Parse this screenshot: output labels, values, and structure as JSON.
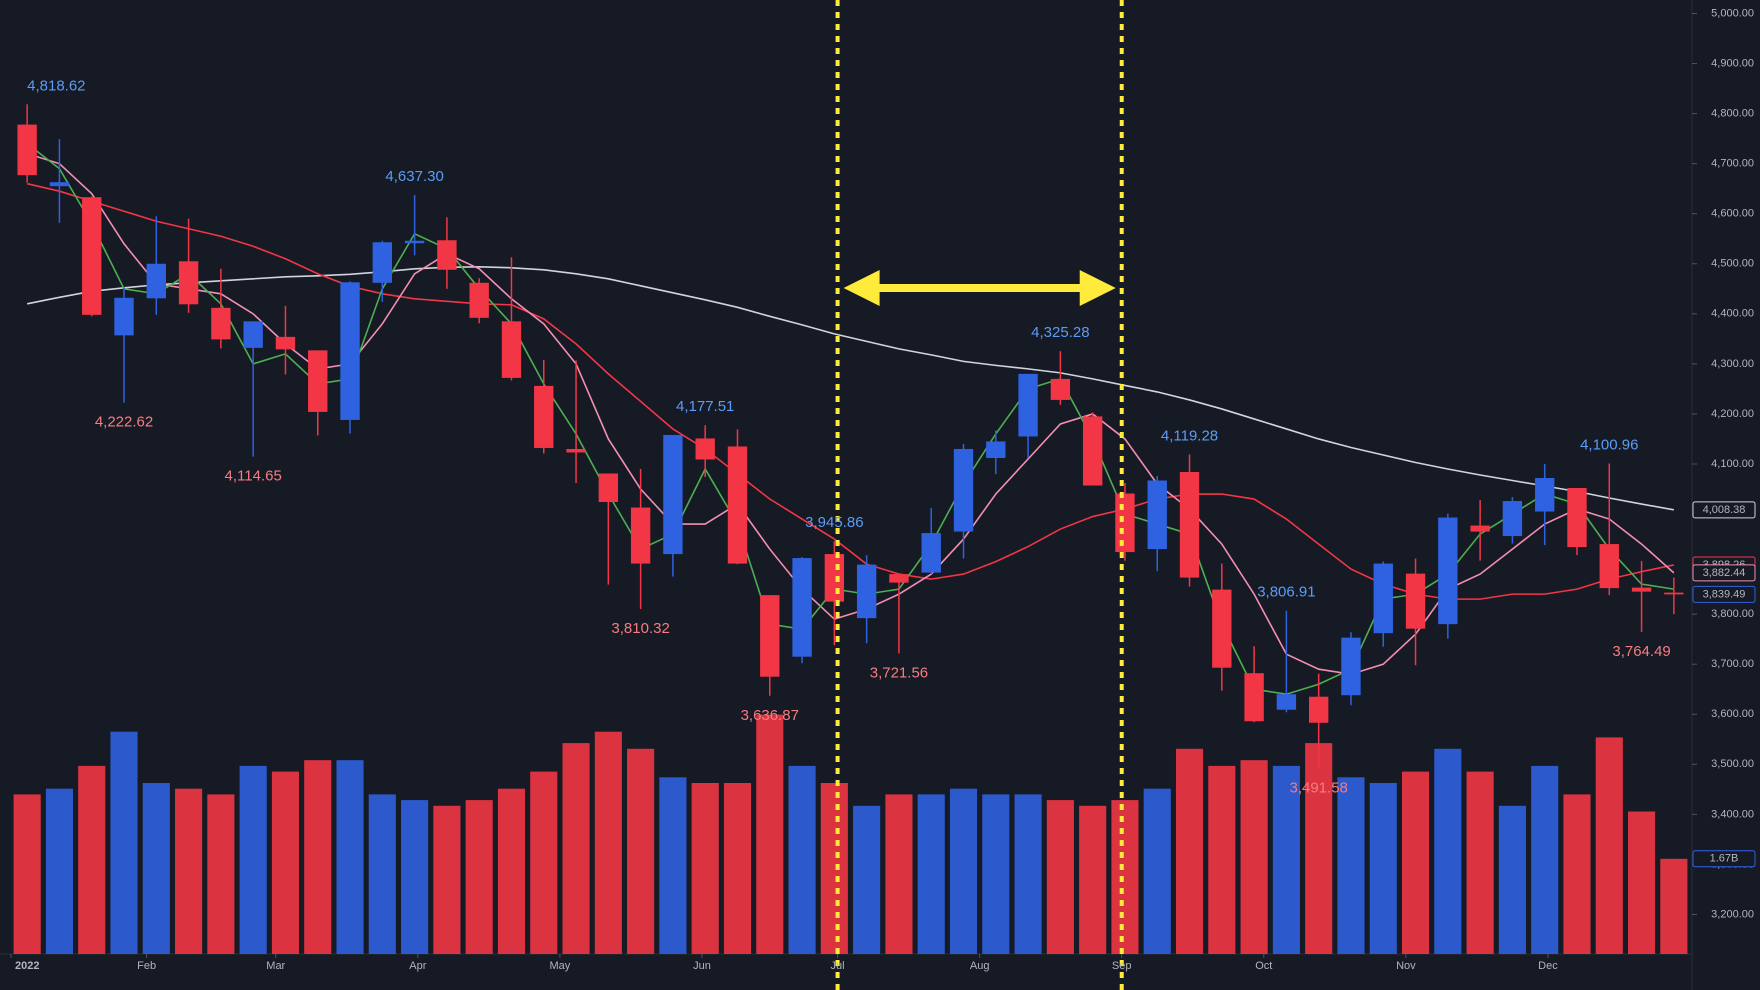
{
  "chart_data": {
    "type": "candlestick",
    "xlim": [
      0,
      52
    ],
    "xticks": [
      {
        "value": 0,
        "label": "2022"
      },
      {
        "value": 4.2,
        "label": "Feb"
      },
      {
        "value": 8.2,
        "label": "Mar"
      },
      {
        "value": 12.6,
        "label": "Apr"
      },
      {
        "value": 17,
        "label": "May"
      },
      {
        "value": 21.4,
        "label": "Jun"
      },
      {
        "value": 25.6,
        "label": "Jul"
      },
      {
        "value": 30,
        "label": "Aug"
      },
      {
        "value": 34.4,
        "label": "Sep"
      },
      {
        "value": 38.8,
        "label": "Oct"
      },
      {
        "value": 43.2,
        "label": "Nov"
      },
      {
        "value": 47.6,
        "label": "Dec"
      }
    ],
    "ylim": [
      3121,
      5027
    ],
    "yticks": [
      {
        "value": 3200,
        "label": "3,200.00"
      },
      {
        "value": 3300,
        "label": "3,300.00"
      },
      {
        "value": 3400,
        "label": "3,400.00"
      },
      {
        "value": 3500,
        "label": "3,500.00"
      },
      {
        "value": 3600,
        "label": "3,600.00"
      },
      {
        "value": 3700,
        "label": "3,700.00"
      },
      {
        "value": 3800,
        "label": "3,800.00"
      },
      {
        "value": 3900,
        "label": "3,900.00"
      },
      {
        "value": 4000,
        "label": "4,000.00"
      },
      {
        "value": 4100,
        "label": "4,100.00"
      },
      {
        "value": 4200,
        "label": "4,200.00"
      },
      {
        "value": 4300,
        "label": "4,300.00"
      },
      {
        "value": 4400,
        "label": "4,400.00"
      },
      {
        "value": 4500,
        "label": "4,500.00"
      },
      {
        "value": 4600,
        "label": "4,600.00"
      },
      {
        "value": 4700,
        "label": "4,700.00"
      },
      {
        "value": 4800,
        "label": "4,800.00"
      },
      {
        "value": 4900,
        "label": "4,900.00"
      },
      {
        "value": 5000,
        "label": "5,000.00"
      }
    ],
    "up_color": "#2f62e0",
    "down_color": "#f23645",
    "open": [
      4778,
      4655,
      4633,
      4357,
      4431,
      4505,
      4412,
      4332,
      4354,
      4327,
      4188,
      4462,
      4541,
      4547,
      4462,
      4385,
      4256,
      4130,
      4081,
      4013,
      3920,
      4151,
      4135,
      3838,
      3715,
      3920,
      3792,
      3880,
      3883,
      3965,
      4112,
      4155,
      4270,
      4195,
      4041,
      3930,
      4084,
      3849,
      3682,
      3609,
      3635,
      3638,
      3762,
      3881,
      3780,
      3977,
      3956,
      4005,
      4052,
      3940,
      3853,
      3843
    ],
    "high": [
      4818.62,
      4749,
      4634,
      4453,
      4595,
      4590,
      4490,
      4385,
      4416,
      4327,
      4465,
      4546,
      4637.3,
      4593,
      4471,
      4513,
      4308,
      4307,
      4081,
      4090,
      4158,
      4177.51,
      4169,
      3838,
      3914,
      3945.86,
      3918,
      3880,
      4012,
      4140,
      4167,
      4280,
      4325.28,
      4203,
      4062,
      4076,
      4119.28,
      3901,
      3736,
      3806.91,
      3681,
      3764,
      3905,
      3911,
      4001,
      4028,
      4034,
      4100,
      4052,
      4100.96,
      3906,
      3873
    ],
    "low": [
      4662,
      4582,
      4395,
      4222.62,
      4398,
      4402,
      4331,
      4114.65,
      4279,
      4157,
      4161,
      4424,
      4517,
      4450,
      4381,
      4267,
      4121,
      4062,
      3859,
      3810.32,
      3875,
      4074,
      3900,
      3636.87,
      3702,
      3738,
      3742,
      3721.56,
      3880,
      3911,
      4080,
      4112,
      4218,
      4057,
      3907,
      3886,
      3855,
      3647,
      3584,
      3604,
      3491.58,
      3618,
      3735,
      3698,
      3751,
      3907,
      3941,
      3938,
      3918,
      3838,
      3764.49,
      3800
    ],
    "close": [
      4677,
      4663,
      4398,
      4432,
      4500,
      4419,
      4349,
      4385,
      4329,
      4204,
      4463,
      4543,
      4546,
      4488,
      4392,
      4272,
      4132,
      4123,
      4024,
      3901,
      4158,
      4109,
      3901,
      3675,
      3912,
      3825,
      3899,
      3863,
      3962,
      4130,
      4145,
      4280,
      4228,
      4057,
      3924,
      4067,
      3873,
      3693,
      3586,
      3640,
      3583,
      3753,
      3901,
      3771,
      3993,
      3965,
      4026,
      4072,
      3934,
      3852,
      3845,
      3839.49
    ],
    "volume": [
      2.8,
      2.9,
      3.3,
      3.9,
      3.0,
      2.9,
      2.8,
      3.3,
      3.2,
      3.4,
      3.4,
      2.8,
      2.7,
      2.6,
      2.7,
      2.9,
      3.2,
      3.7,
      3.9,
      3.6,
      3.1,
      3.0,
      3.0,
      4.2,
      3.3,
      3.0,
      2.6,
      2.8,
      2.8,
      2.9,
      2.8,
      2.8,
      2.7,
      2.6,
      2.7,
      2.9,
      3.6,
      3.3,
      3.4,
      3.3,
      3.7,
      3.1,
      3.0,
      3.2,
      3.6,
      3.2,
      2.6,
      3.3,
      2.8,
      3.8,
      2.5,
      1.67
    ],
    "vlim": [
      0,
      6
    ],
    "volume_marker": {
      "value": 1.67,
      "label": "1.67B"
    },
    "lines": [
      {
        "color": "#d1d4dc",
        "values": [
          4420,
          4433,
          4445,
          4452,
          4458,
          4462,
          4466,
          4470,
          4474,
          4476,
          4479,
          4484,
          4490,
          4493,
          4494,
          4492,
          4488,
          4480,
          4470,
          4456,
          4442,
          4428,
          4413,
          4395,
          4378,
          4360,
          4345,
          4330,
          4318,
          4305,
          4297,
          4290,
          4282,
          4270,
          4257,
          4244,
          4228,
          4210,
          4190,
          4170,
          4150,
          4133,
          4118,
          4103,
          4090,
          4078,
          4067,
          4056,
          4045,
          4032,
          4020,
          4008.38
        ]
      },
      {
        "color": "#f23645",
        "values": [
          4660,
          4645,
          4625,
          4605,
          4585,
          4570,
          4555,
          4535,
          4510,
          4480,
          4455,
          4440,
          4430,
          4425,
          4420,
          4418,
          4390,
          4340,
          4280,
          4225,
          4170,
          4130,
          4080,
          4030,
          3990,
          3950,
          3900,
          3880,
          3870,
          3880,
          3905,
          3935,
          3970,
          3995,
          4010,
          4030,
          4040,
          4040,
          4030,
          3990,
          3940,
          3890,
          3860,
          3840,
          3830,
          3830,
          3840,
          3840,
          3850,
          3870,
          3885,
          3898.26
        ]
      },
      {
        "color": "#f48fb1",
        "values": [
          4720,
          4700,
          4640,
          4540,
          4460,
          4450,
          4440,
          4400,
          4340,
          4290,
          4300,
          4380,
          4480,
          4520,
          4490,
          4430,
          4380,
          4300,
          4150,
          4050,
          3980,
          3980,
          4020,
          3930,
          3850,
          3790,
          3810,
          3840,
          3880,
          3950,
          4040,
          4110,
          4180,
          4200,
          4150,
          4060,
          4010,
          3940,
          3840,
          3720,
          3690,
          3680,
          3700,
          3760,
          3850,
          3880,
          3930,
          3980,
          4010,
          3990,
          3940,
          3882.44
        ]
      },
      {
        "color": "#4caf50",
        "values": [
          4740,
          4690,
          4580,
          4450,
          4440,
          4480,
          4420,
          4300,
          4320,
          4260,
          4270,
          4450,
          4560,
          4530,
          4450,
          4380,
          4260,
          4160,
          4040,
          3930,
          3960,
          4090,
          3980,
          3780,
          3770,
          3850,
          3840,
          3850,
          3940,
          4060,
          4160,
          4250,
          4270,
          4150,
          4000,
          3980,
          3960,
          3780,
          3650,
          3640,
          3660,
          3690,
          3830,
          3840,
          3880,
          3960,
          4000,
          4040,
          4020,
          3930,
          3860,
          3850
        ]
      }
    ],
    "price_markers": [
      {
        "value": 4008.38,
        "label": "4,008.38",
        "color": "#d1d4dc"
      },
      {
        "value": 3898.26,
        "label": "3,898.26",
        "color": "#f23645"
      },
      {
        "value": 3882.44,
        "label": "3,882.44",
        "color": "#f48fb1"
      },
      {
        "value": 3839.49,
        "label": "3,839.49",
        "color": "#2f62e0"
      }
    ],
    "annotations": [
      {
        "x": 0,
        "value": 4818.62,
        "label": "4,818.62",
        "position": "above"
      },
      {
        "x": 3,
        "value": 4222.62,
        "label": "4,222.62",
        "position": "below"
      },
      {
        "x": 7,
        "value": 4114.65,
        "label": "4,114.65",
        "position": "below"
      },
      {
        "x": 12,
        "value": 4637.3,
        "label": "4,637.30",
        "position": "above"
      },
      {
        "x": 19,
        "value": 3810.32,
        "label": "3,810.32",
        "position": "below"
      },
      {
        "x": 21,
        "value": 4177.51,
        "label": "4,177.51",
        "position": "above"
      },
      {
        "x": 23,
        "value": 3636.87,
        "label": "3,636.87",
        "position": "below"
      },
      {
        "x": 25,
        "value": 3945.86,
        "label": "3,945.86",
        "position": "above"
      },
      {
        "x": 27,
        "value": 3721.56,
        "label": "3,721.56",
        "position": "below"
      },
      {
        "x": 32,
        "value": 4325.28,
        "label": "4,325.28",
        "position": "above"
      },
      {
        "x": 36,
        "value": 4119.28,
        "label": "4,119.28",
        "position": "above"
      },
      {
        "x": 39,
        "value": 3806.91,
        "label": "3,806.91",
        "position": "above"
      },
      {
        "x": 40,
        "value": 3491.58,
        "label": "3,491.58",
        "position": "below"
      },
      {
        "x": 49,
        "value": 4100.96,
        "label": "4,100.96",
        "position": "above"
      },
      {
        "x": 50,
        "value": 3764.49,
        "label": "3,764.49",
        "position": "below"
      }
    ]
  }
}
